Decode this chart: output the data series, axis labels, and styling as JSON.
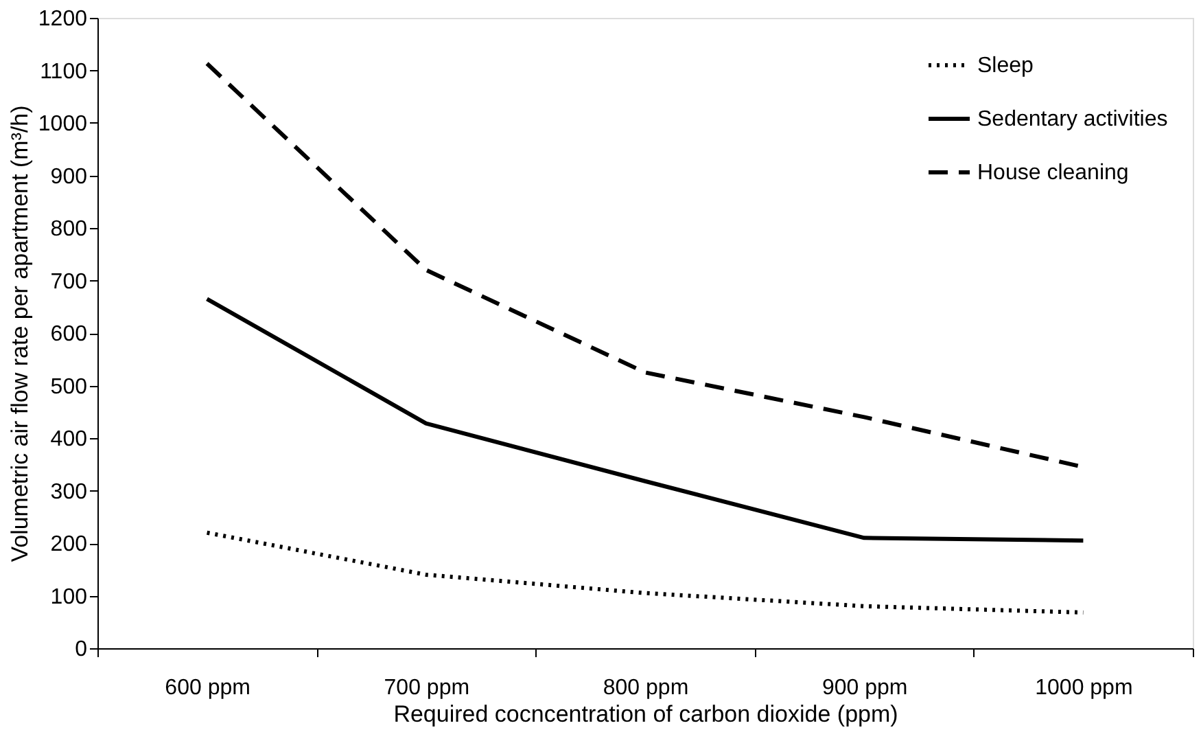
{
  "chart_data": {
    "type": "line",
    "xlabel": "Required cocncentration of carbon dioxide (ppm)",
    "ylabel": "Volumetric air flow rate per apartment (m³/h)",
    "categories": [
      "600 ppm",
      "700 ppm",
      "800 ppm",
      "900 ppm",
      "1000 ppm"
    ],
    "ylim": [
      0,
      1200
    ],
    "yticks": [
      0,
      100,
      200,
      300,
      400,
      500,
      600,
      700,
      800,
      900,
      1000,
      1100,
      1200
    ],
    "grid": false,
    "legend": "top right",
    "marker": "none",
    "series": [
      {
        "name": "Sleep",
        "color": "#000000",
        "line_style": "dotted",
        "values": [
          220,
          140,
          105,
          80,
          68
        ]
      },
      {
        "name": "Sedentary activities",
        "color": "#000000",
        "line_style": "solid",
        "values": [
          665,
          428,
          318,
          210,
          205
        ]
      },
      {
        "name": "House cleaning",
        "color": "#000000",
        "line_style": "dashed",
        "values": [
          1113,
          720,
          525,
          440,
          345
        ]
      }
    ]
  }
}
